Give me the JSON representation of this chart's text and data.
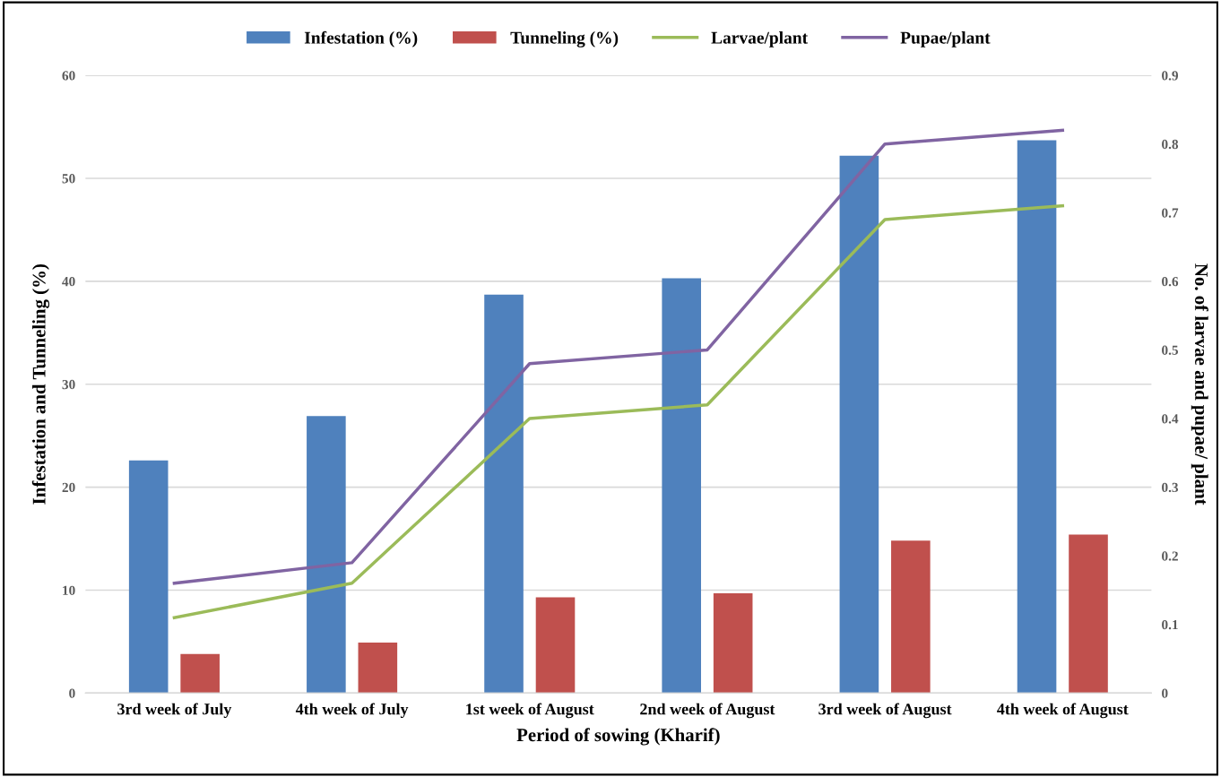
{
  "chart_data": {
    "type": "bar",
    "categories": [
      "3rd week of July",
      "4th week of July",
      "1st week of August",
      "2nd week of August",
      "3rd week of August",
      "4th week of August"
    ],
    "xlabel": "Period of sowing (Kharif)",
    "ylabel": "Infestation and Tunneling (%)",
    "y2label": "No. of larvae and pupae/ plant",
    "series": [
      {
        "name": "Infestation (%)",
        "color": "#4f81bd",
        "values": [
          22.6,
          26.9,
          38.7,
          40.3,
          52.2,
          53.7
        ]
      },
      {
        "name": "Tunneling (%)",
        "color": "#c0504d",
        "values": [
          3.8,
          4.9,
          9.3,
          9.7,
          14.8,
          15.4
        ]
      },
      {
        "name": "Larvae/plant",
        "type": "line",
        "axis": "y2",
        "color": "#9bbb59",
        "values": [
          0.11,
          0.16,
          0.4,
          0.42,
          0.69,
          0.71
        ]
      },
      {
        "name": "Pupae/plant",
        "type": "line",
        "axis": "y2",
        "color": "#8064a2",
        "values": [
          0.16,
          0.19,
          0.48,
          0.5,
          0.8,
          0.82
        ]
      }
    ],
    "ylim": [
      0,
      60
    ],
    "yticks": [
      0,
      10,
      20,
      30,
      40,
      50,
      60
    ],
    "y2lim": [
      0,
      0.9
    ],
    "y2ticks": [
      0,
      0.1,
      0.2,
      0.3,
      0.4,
      0.5,
      0.6,
      0.7,
      0.8,
      0.9
    ],
    "grid": "y",
    "legend": "top",
    "marker": "none",
    "line_style": "solid"
  }
}
